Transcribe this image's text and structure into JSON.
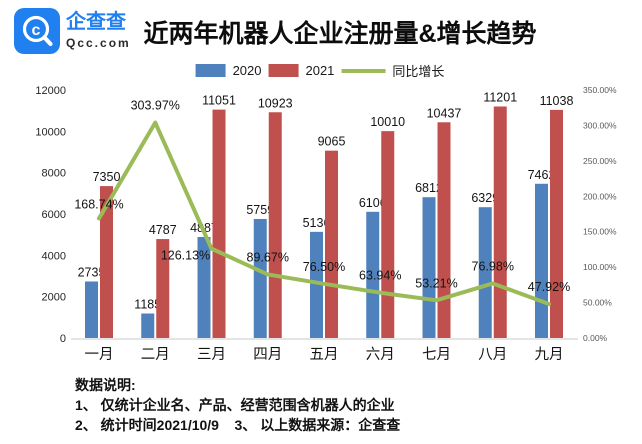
{
  "header": {
    "logo": {
      "brand": "企查查",
      "domain": "Qcc.com"
    }
  },
  "legend": [
    {
      "label": "2020",
      "color": "#4f81bd",
      "type": "swatch"
    },
    {
      "label": "2021",
      "color": "#c0504d",
      "type": "swatch"
    },
    {
      "label": "同比增长",
      "color": "#9bbb59",
      "type": "line"
    }
  ],
  "chart_data": {
    "type": "bar",
    "subtype": "grouped bars with line on secondary axis",
    "title": "近两年机器人企业注册量&增长趋势",
    "categories": [
      "一月",
      "二月",
      "三月",
      "四月",
      "五月",
      "六月",
      "七月",
      "八月",
      "九月"
    ],
    "series": [
      {
        "name": "2020",
        "type": "bar",
        "color": "#4f81bd",
        "axis": "left",
        "values": [
          2735,
          1185,
          4887,
          5759,
          5136,
          6106,
          6812,
          6329,
          7462
        ]
      },
      {
        "name": "2021",
        "type": "bar",
        "color": "#c0504d",
        "axis": "left",
        "values": [
          7350,
          4787,
          11051,
          10923,
          9065,
          10010,
          10437,
          11201,
          11038
        ]
      },
      {
        "name": "同比增长",
        "type": "line",
        "color": "#9bbb59",
        "axis": "right",
        "values": [
          168.74,
          303.97,
          126.13,
          89.67,
          76.5,
          63.94,
          53.21,
          76.98,
          47.92
        ],
        "labels": [
          "168.74%",
          "303.97%",
          "126.13%",
          "89.67%",
          "76.50%",
          "63.94%",
          "53.21%",
          "76.98%",
          "47.92%"
        ]
      }
    ],
    "left_axis": {
      "min": 0,
      "max": 12000,
      "step": 2000,
      "ticks": [
        "0",
        "2000",
        "4000",
        "6000",
        "8000",
        "10000",
        "12000"
      ]
    },
    "right_axis": {
      "min": 0,
      "max": 350,
      "step": 50,
      "ticks": [
        "0.00%",
        "50.00%",
        "100.00%",
        "150.00%",
        "200.00%",
        "250.00%",
        "300.00%",
        "350.00%"
      ]
    },
    "grid": false,
    "legend_position": "top",
    "xlabel": "",
    "ylabel": ""
  },
  "footnote": {
    "heading": "数据说明:",
    "lines": [
      "1、 仅统计企业名、产品、经营范围含机器人的企业",
      "2、 统计时间2021/10/9    3、 以上数据来源：企查查"
    ]
  }
}
